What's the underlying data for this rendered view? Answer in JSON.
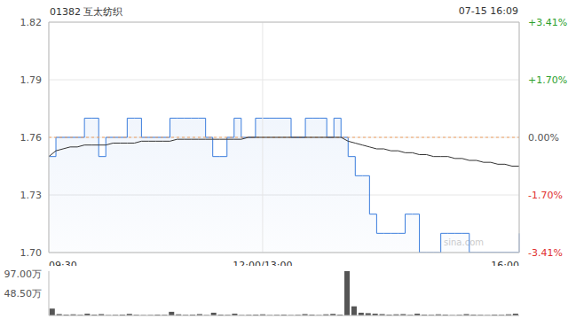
{
  "chart_data": [
    {
      "type": "line",
      "title": "01382 互太纺织",
      "subtitle": "07-15 16:09",
      "watermark": "sina.com",
      "categories": [
        "09:30",
        null,
        null,
        null,
        null,
        null,
        null,
        null,
        null,
        null,
        null,
        null,
        null,
        null,
        null,
        null,
        null,
        null,
        null,
        null,
        null,
        null,
        null,
        null,
        null,
        null,
        null,
        null,
        null,
        null,
        "12:00/13:00",
        null,
        null,
        null,
        null,
        null,
        null,
        null,
        null,
        null,
        null,
        null,
        null,
        null,
        null,
        null,
        null,
        null,
        null,
        null,
        null,
        null,
        null,
        null,
        null,
        null,
        null,
        null,
        null,
        null,
        null,
        null,
        null,
        null,
        null,
        null,
        "16:00"
      ],
      "series": [
        {
          "type": "area",
          "color": "#3b7ddd",
          "line_style": "step",
          "values": [
            1.75,
            1.76,
            1.76,
            1.76,
            1.76,
            1.77,
            1.77,
            1.75,
            1.76,
            1.76,
            1.76,
            1.77,
            1.77,
            1.76,
            1.76,
            1.76,
            1.76,
            1.77,
            1.77,
            1.77,
            1.77,
            1.77,
            1.76,
            1.75,
            1.75,
            1.76,
            1.77,
            1.76,
            1.76,
            1.77,
            1.77,
            1.77,
            1.77,
            1.77,
            1.76,
            1.76,
            1.77,
            1.77,
            1.77,
            1.76,
            1.77,
            1.76,
            1.75,
            1.74,
            1.74,
            1.72,
            1.71,
            1.71,
            1.71,
            1.71,
            1.72,
            1.72,
            1.7,
            1.7,
            1.7,
            1.71,
            1.71,
            1.71,
            1.71,
            1.7,
            1.7,
            1.7,
            1.7,
            1.7,
            1.7,
            1.7,
            1.71
          ]
        },
        {
          "type": "line",
          "color": "#333333",
          "values": [
            1.75,
            1.753,
            1.754,
            1.755,
            1.755,
            1.756,
            1.756,
            1.756,
            1.756,
            1.757,
            1.757,
            1.757,
            1.757,
            1.758,
            1.758,
            1.758,
            1.758,
            1.758,
            1.759,
            1.759,
            1.759,
            1.759,
            1.759,
            1.759,
            1.759,
            1.759,
            1.759,
            1.759,
            1.76,
            1.76,
            1.76,
            1.76,
            1.76,
            1.76,
            1.76,
            1.76,
            1.76,
            1.76,
            1.76,
            1.76,
            1.76,
            1.76,
            1.758,
            1.757,
            1.756,
            1.755,
            1.754,
            1.754,
            1.753,
            1.753,
            1.752,
            1.752,
            1.751,
            1.751,
            1.75,
            1.75,
            1.75,
            1.749,
            1.749,
            1.748,
            1.748,
            1.747,
            1.747,
            1.746,
            1.746,
            1.745,
            1.745
          ]
        }
      ],
      "baseline": 1.76,
      "ylim": [
        1.7,
        1.82
      ],
      "yticks": [
        {
          "value": 1.7,
          "label": "1.70"
        },
        1.73,
        1.76,
        1.79,
        1.82
      ],
      "y2lim": [
        -3.41,
        3.41
      ],
      "y2ticks": [
        {
          "value": -3.41,
          "label": "-3.41%"
        },
        {
          "value": -1.7,
          "label": "-1.70%"
        },
        {
          "value": 0,
          "label": "0.00%"
        },
        {
          "value": 1.7,
          "label": "+1.70%"
        },
        {
          "value": 3.41,
          "label": "+3.41%"
        }
      ],
      "grid": true
    },
    {
      "type": "bar",
      "color": "#555555",
      "tick_labels": "y",
      "values": [
        150000,
        30000,
        20000,
        25000,
        15000,
        40000,
        20000,
        30000,
        10000,
        15000,
        20000,
        35000,
        15000,
        10000,
        12000,
        20000,
        15000,
        80000,
        25000,
        15000,
        20000,
        30000,
        10000,
        60000,
        20000,
        15000,
        40000,
        10000,
        15000,
        20000,
        25000,
        10000,
        15000,
        20000,
        10000,
        15000,
        30000,
        20000,
        10000,
        25000,
        35000,
        20000,
        970000,
        200000,
        60000,
        50000,
        40000,
        30000,
        20000,
        25000,
        30000,
        15000,
        40000,
        20000,
        15000,
        25000,
        20000,
        10000,
        15000,
        30000,
        20000,
        15000,
        10000,
        20000,
        15000,
        25000,
        40000
      ],
      "ylim": [
        0,
        970000
      ],
      "yticks": [
        0,
        {
          "value": 485000,
          "label": "48.50万"
        },
        {
          "value": 970000,
          "label": "97.00万"
        }
      ]
    }
  ]
}
